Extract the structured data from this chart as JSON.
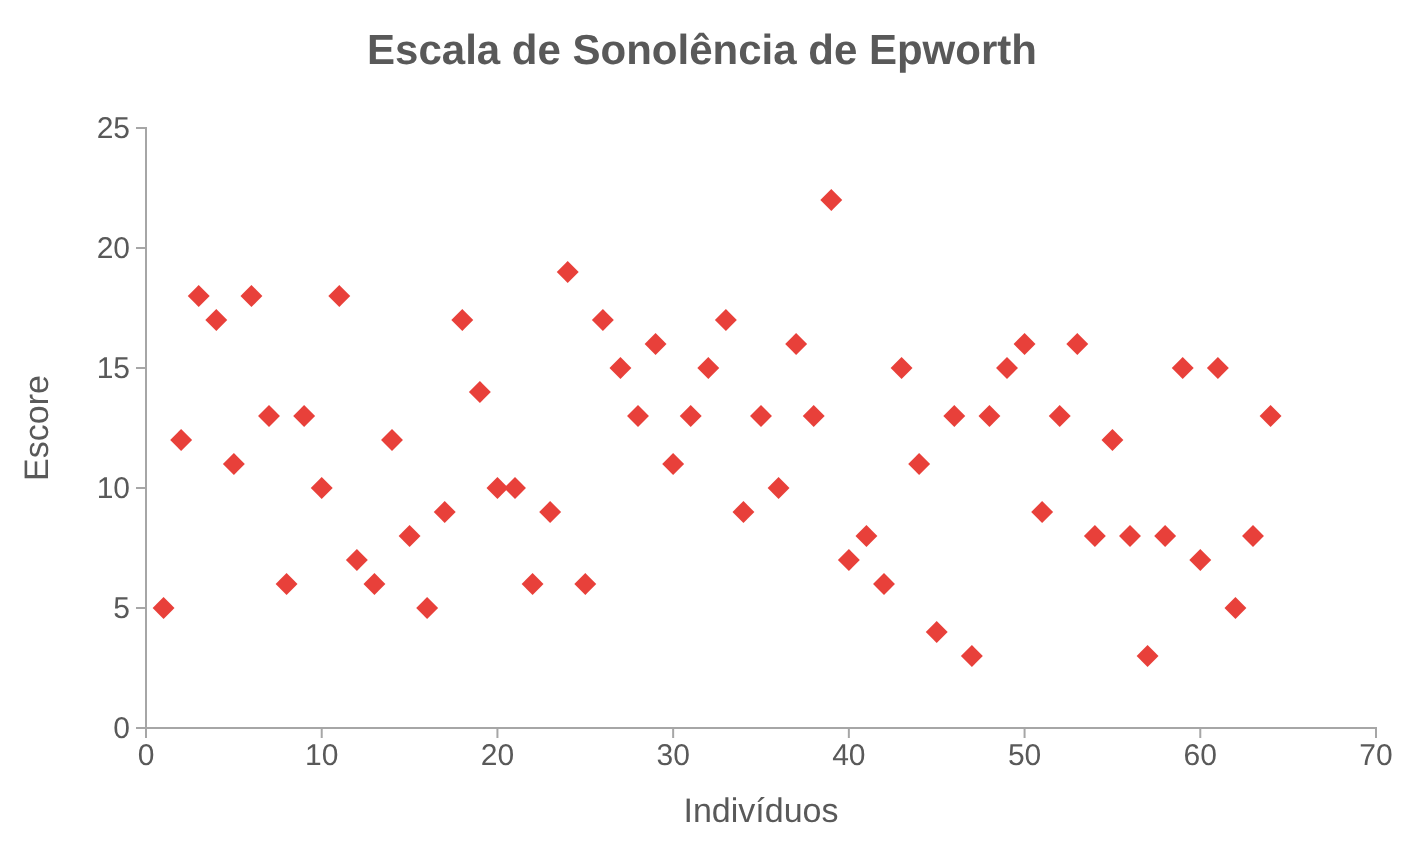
{
  "chart_data": {
    "type": "scatter",
    "title": "Escala de Sonolência de Epworth",
    "xlabel": "Indivíduos",
    "ylabel": "Escore",
    "x": [
      1,
      2,
      3,
      4,
      5,
      6,
      7,
      8,
      9,
      10,
      11,
      12,
      13,
      14,
      15,
      16,
      17,
      18,
      19,
      20,
      21,
      22,
      23,
      24,
      25,
      26,
      27,
      28,
      29,
      30,
      31,
      32,
      33,
      34,
      35,
      36,
      37,
      38,
      39,
      40,
      41,
      42,
      43,
      44,
      45,
      46,
      47,
      48,
      49,
      50,
      51,
      52,
      53,
      54,
      55,
      56,
      57,
      58,
      59,
      60,
      61,
      62,
      63,
      64
    ],
    "series": [
      {
        "color": "#e8403a",
        "values": [
          5,
          12,
          18,
          17,
          11,
          18,
          13,
          6,
          13,
          10,
          18,
          7,
          6,
          12,
          8,
          5,
          9,
          17,
          14,
          10,
          10,
          6,
          9,
          19,
          6,
          17,
          15,
          13,
          16,
          11,
          13,
          15,
          17,
          9,
          13,
          10,
          16,
          13,
          22,
          7,
          8,
          6,
          15,
          11,
          4,
          13,
          3,
          13,
          15,
          16,
          9,
          13,
          16,
          8,
          12,
          8,
          3,
          8,
          15,
          7,
          15,
          5,
          8,
          13
        ]
      }
    ],
    "xlim": [
      0,
      70
    ],
    "xticks": [
      0,
      10,
      20,
      30,
      40,
      50,
      60,
      70
    ],
    "ylim": [
      0,
      25
    ],
    "yticks": [
      0,
      5,
      10,
      15,
      20,
      25
    ],
    "marker": "diamond",
    "grid": false
  }
}
